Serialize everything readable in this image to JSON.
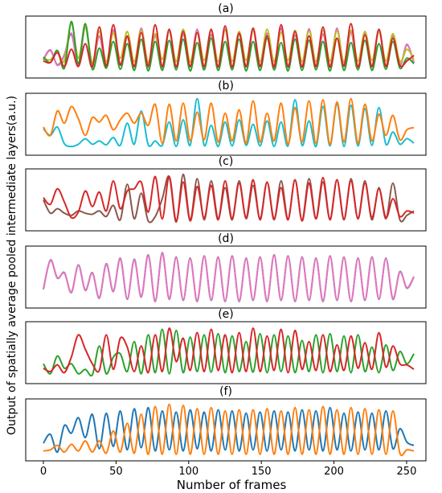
{
  "figure": {
    "ylabel": "Output of spatially average pooled intermediate layers(a.u.)",
    "xlabel": "Number of frames"
  },
  "chart_data": [
    {
      "type": "line",
      "title": "(a)",
      "xlim": [
        0,
        255
      ],
      "ylim": [
        0,
        1
      ],
      "series": [
        {
          "color": "#8c564b",
          "values": [
            0.27,
            0.44,
            0.18,
            0.36,
            0.73,
            0.19,
            0.85,
            0.2,
            0.69,
            0.17,
            0.8,
            0.18,
            0.68,
            0.15,
            0.83,
            0.14,
            0.7,
            0.13,
            0.8,
            0.15,
            0.73,
            0.15,
            0.81,
            0.14,
            0.72,
            0.15,
            0.81,
            0.13,
            0.73,
            0.15,
            0.8,
            0.16,
            0.74,
            0.16,
            0.83,
            0.14,
            0.71,
            0.15,
            0.82,
            0.15,
            0.73,
            0.15,
            0.83,
            0.16,
            0.76,
            0.14,
            0.74,
            0.15,
            0.8,
            0.16,
            0.7,
            0.18,
            0.54,
            0.22
          ]
        },
        {
          "color": "#e377c2",
          "values": [
            0.28,
            0.45,
            0.17,
            0.35,
            0.75,
            0.18,
            0.86,
            0.2,
            0.7,
            0.16,
            0.81,
            0.17,
            0.69,
            0.14,
            0.84,
            0.13,
            0.71,
            0.12,
            0.81,
            0.14,
            0.74,
            0.14,
            0.82,
            0.13,
            0.73,
            0.14,
            0.82,
            0.12,
            0.74,
            0.14,
            0.81,
            0.15,
            0.75,
            0.15,
            0.84,
            0.13,
            0.72,
            0.14,
            0.83,
            0.14,
            0.74,
            0.14,
            0.84,
            0.15,
            0.77,
            0.13,
            0.75,
            0.14,
            0.81,
            0.15,
            0.71,
            0.17,
            0.55,
            0.21
          ]
        },
        {
          "color": "#bcbd22",
          "values": [
            0.3,
            0.27,
            0.4,
            0.25,
            0.93,
            0.3,
            0.86,
            0.22,
            0.78,
            0.24,
            0.75,
            0.3,
            0.78,
            0.24,
            0.8,
            0.22,
            0.74,
            0.28,
            0.78,
            0.24,
            0.82,
            0.23,
            0.76,
            0.26,
            0.79,
            0.24,
            0.8,
            0.24,
            0.78,
            0.26,
            0.8,
            0.24,
            0.82,
            0.24,
            0.76,
            0.26,
            0.8,
            0.24,
            0.79,
            0.24,
            0.8,
            0.25,
            0.79,
            0.24,
            0.8,
            0.25,
            0.78,
            0.26,
            0.77,
            0.25,
            0.74,
            0.24,
            0.46,
            0.28
          ]
        },
        {
          "color": "#2ca02c",
          "values": [
            0.32,
            0.22,
            0.44,
            0.12,
            0.96,
            0.2,
            0.92,
            0.1,
            0.48,
            0.12,
            0.6,
            0.1,
            0.56,
            0.08,
            0.64,
            0.07,
            0.6,
            0.08,
            0.62,
            0.09,
            0.64,
            0.07,
            0.58,
            0.09,
            0.66,
            0.08,
            0.6,
            0.09,
            0.64,
            0.07,
            0.6,
            0.08,
            0.66,
            0.09,
            0.58,
            0.07,
            0.64,
            0.08,
            0.62,
            0.09,
            0.6,
            0.07,
            0.66,
            0.08,
            0.58,
            0.09,
            0.62,
            0.08,
            0.56,
            0.1,
            0.6,
            0.12,
            0.3,
            0.2
          ]
        },
        {
          "color": "#d62728",
          "values": [
            0.25,
            0.22,
            0.4,
            0.15,
            0.46,
            0.15,
            0.56,
            0.14,
            0.86,
            0.16,
            0.9,
            0.18,
            0.7,
            0.15,
            0.76,
            0.16,
            0.9,
            0.15,
            0.82,
            0.14,
            0.78,
            0.15,
            0.76,
            0.15,
            0.82,
            0.14,
            0.88,
            0.14,
            0.75,
            0.15,
            0.84,
            0.15,
            0.7,
            0.14,
            0.9,
            0.15,
            0.78,
            0.14,
            0.7,
            0.15,
            0.86,
            0.14,
            0.66,
            0.16,
            0.92,
            0.14,
            0.72,
            0.15,
            0.82,
            0.15,
            0.66,
            0.17,
            0.25,
            0.35
          ]
        }
      ]
    },
    {
      "type": "line",
      "title": "(b)",
      "xlim": [
        0,
        255
      ],
      "ylim": [
        0,
        1
      ],
      "series": [
        {
          "color": "#17becf",
          "values": [
            0.42,
            0.3,
            0.45,
            0.15,
            0.1,
            0.14,
            0.24,
            0.14,
            0.2,
            0.13,
            0.26,
            0.12,
            0.52,
            0.14,
            0.74,
            0.13,
            0.2,
            0.12,
            0.54,
            0.1,
            0.58,
            0.12,
            0.96,
            0.12,
            0.48,
            0.1,
            0.54,
            0.11,
            0.58,
            0.12,
            0.5,
            0.11,
            0.56,
            0.1,
            0.54,
            0.11,
            0.94,
            0.12,
            0.56,
            0.1,
            0.82,
            0.11,
            0.86,
            0.1,
            0.84,
            0.11,
            0.78,
            0.12,
            0.8,
            0.14,
            0.36,
            0.14,
            0.24,
            0.16
          ]
        },
        {
          "color": "#ff7f0e",
          "values": [
            0.45,
            0.3,
            0.74,
            0.52,
            0.82,
            0.6,
            0.3,
            0.62,
            0.54,
            0.66,
            0.4,
            0.58,
            0.7,
            0.52,
            0.7,
            0.48,
            0.86,
            0.16,
            0.86,
            0.2,
            0.88,
            0.2,
            0.72,
            0.22,
            0.88,
            0.18,
            0.7,
            0.2,
            0.76,
            0.16,
            0.92,
            0.18,
            0.7,
            0.2,
            0.88,
            0.14,
            0.8,
            0.18,
            0.92,
            0.16,
            0.94,
            0.14,
            0.9,
            0.18,
            0.96,
            0.16,
            0.86,
            0.2,
            0.68,
            0.3,
            0.66,
            0.22,
            0.4,
            0.44
          ]
        }
      ]
    },
    {
      "type": "line",
      "title": "(c)",
      "xlim": [
        0,
        255
      ],
      "ylim": [
        0,
        1
      ],
      "series": [
        {
          "color": "#8c564b",
          "values": [
            0.5,
            0.26,
            0.34,
            0.26,
            0.22,
            0.3,
            0.26,
            0.24,
            0.3,
            0.2,
            0.4,
            0.14,
            0.78,
            0.16,
            0.62,
            0.12,
            0.2,
            0.52,
            0.92,
            0.1,
            0.96,
            0.14,
            0.88,
            0.14,
            0.84,
            0.16,
            0.72,
            0.14,
            0.84,
            0.16,
            0.76,
            0.16,
            0.82,
            0.14,
            0.84,
            0.16,
            0.86,
            0.14,
            0.88,
            0.16,
            0.82,
            0.15,
            0.86,
            0.14,
            0.88,
            0.16,
            0.84,
            0.14,
            0.72,
            0.16,
            0.8,
            0.14,
            0.22,
            0.3
          ]
        },
        {
          "color": "#d62728",
          "values": [
            0.54,
            0.42,
            0.7,
            0.46,
            0.18,
            0.28,
            0.66,
            0.38,
            0.64,
            0.3,
            0.84,
            0.34,
            0.66,
            0.7,
            0.82,
            0.28,
            0.92,
            0.16,
            0.92,
            0.12,
            0.82,
            0.12,
            0.74,
            0.18,
            0.76,
            0.14,
            0.84,
            0.16,
            0.8,
            0.18,
            0.86,
            0.14,
            0.82,
            0.16,
            0.72,
            0.14,
            0.86,
            0.12,
            0.8,
            0.16,
            0.9,
            0.14,
            0.86,
            0.16,
            0.84,
            0.16,
            0.8,
            0.18,
            0.7,
            0.18,
            0.52,
            0.2,
            0.3,
            0.26
          ]
        }
      ]
    },
    {
      "type": "line",
      "title": "(d)",
      "xlim": [
        0,
        255
      ],
      "ylim": [
        0,
        1
      ],
      "series": [
        {
          "color": "#7f7f7f",
          "values": [
            0.28,
            0.8,
            0.48,
            0.58,
            0.22,
            0.72,
            0.26,
            0.58,
            0.12,
            0.74,
            0.24,
            0.84,
            0.1,
            0.82,
            0.14,
            0.9,
            0.06,
            0.94,
            0.1,
            0.86,
            0.08,
            0.84,
            0.06,
            0.88,
            0.08,
            0.86,
            0.06,
            0.88,
            0.06,
            0.84,
            0.08,
            0.86,
            0.06,
            0.9,
            0.08,
            0.88,
            0.06,
            0.86,
            0.08,
            0.84,
            0.06,
            0.88,
            0.08,
            0.86,
            0.06,
            0.84,
            0.08,
            0.86,
            0.1,
            0.84,
            0.1,
            0.6,
            0.3,
            0.5
          ]
        },
        {
          "color": "#e377c2",
          "values": [
            0.29,
            0.81,
            0.49,
            0.57,
            0.23,
            0.71,
            0.27,
            0.57,
            0.13,
            0.73,
            0.25,
            0.83,
            0.11,
            0.81,
            0.15,
            0.89,
            0.07,
            0.93,
            0.11,
            0.85,
            0.09,
            0.83,
            0.07,
            0.87,
            0.09,
            0.85,
            0.07,
            0.87,
            0.07,
            0.83,
            0.09,
            0.85,
            0.07,
            0.89,
            0.09,
            0.87,
            0.07,
            0.85,
            0.09,
            0.83,
            0.07,
            0.87,
            0.09,
            0.85,
            0.07,
            0.83,
            0.09,
            0.85,
            0.11,
            0.83,
            0.11,
            0.59,
            0.31,
            0.51
          ]
        }
      ]
    },
    {
      "type": "line",
      "title": "(e)",
      "xlim": [
        0,
        255
      ],
      "ylim": [
        0,
        1
      ],
      "series": [
        {
          "color": "#2ca02c",
          "values": [
            0.3,
            0.12,
            0.44,
            0.22,
            0.3,
            0.12,
            0.2,
            0.1,
            0.62,
            0.12,
            0.42,
            0.48,
            0.16,
            0.7,
            0.12,
            0.82,
            0.14,
            0.92,
            0.12,
            0.9,
            0.14,
            0.78,
            0.16,
            0.82,
            0.15,
            0.84,
            0.14,
            0.8,
            0.16,
            0.7,
            0.15,
            0.84,
            0.14,
            0.82,
            0.16,
            0.8,
            0.14,
            0.72,
            0.16,
            0.82,
            0.14,
            0.84,
            0.16,
            0.8,
            0.14,
            0.82,
            0.16,
            0.6,
            0.14,
            0.64,
            0.18,
            0.52,
            0.3,
            0.48
          ]
        },
        {
          "color": "#d62728",
          "values": [
            0.22,
            0.16,
            0.28,
            0.14,
            0.42,
            0.82,
            0.56,
            0.3,
            0.18,
            0.82,
            0.2,
            0.76,
            0.6,
            0.16,
            0.62,
            0.14,
            0.82,
            0.16,
            0.94,
            0.34,
            0.76,
            0.18,
            0.86,
            0.16,
            0.92,
            0.18,
            0.82,
            0.14,
            0.86,
            0.16,
            0.94,
            0.16,
            0.8,
            0.18,
            0.92,
            0.14,
            0.9,
            0.2,
            0.7,
            0.18,
            0.82,
            0.16,
            0.64,
            0.18,
            0.8,
            0.22,
            0.68,
            0.2,
            0.86,
            0.24,
            0.62,
            0.3,
            0.28,
            0.2
          ]
        }
      ]
    },
    {
      "type": "line",
      "title": "(f)",
      "xlim": [
        0,
        255
      ],
      "ylim": [
        0,
        1
      ],
      "series": [
        {
          "color": "#1f77b4",
          "values": [
            0.26,
            0.42,
            0.1,
            0.58,
            0.44,
            0.72,
            0.36,
            0.78,
            0.16,
            0.8,
            0.2,
            0.84,
            0.14,
            0.88,
            0.18,
            0.9,
            0.12,
            0.84,
            0.14,
            0.82,
            0.12,
            0.86,
            0.16,
            0.82,
            0.12,
            0.86,
            0.14,
            0.84,
            0.12,
            0.8,
            0.14,
            0.82,
            0.12,
            0.84,
            0.14,
            0.82,
            0.12,
            0.86,
            0.14,
            0.84,
            0.12,
            0.9,
            0.14,
            0.8,
            0.12,
            0.82,
            0.14,
            0.8,
            0.14,
            0.84,
            0.16,
            0.52,
            0.28,
            0.22
          ]
        },
        {
          "color": "#ff7f0e",
          "values": [
            0.12,
            0.14,
            0.22,
            0.1,
            0.24,
            0.12,
            0.3,
            0.1,
            0.3,
            0.08,
            0.48,
            0.1,
            0.62,
            0.08,
            0.78,
            0.06,
            0.92,
            0.06,
            0.96,
            0.06,
            0.94,
            0.06,
            0.88,
            0.06,
            0.9,
            0.06,
            0.84,
            0.06,
            0.86,
            0.06,
            0.86,
            0.06,
            0.88,
            0.06,
            0.84,
            0.06,
            0.9,
            0.06,
            0.86,
            0.06,
            0.92,
            0.06,
            0.86,
            0.06,
            0.9,
            0.06,
            0.88,
            0.06,
            0.86,
            0.06,
            0.84,
            0.08,
            0.14,
            0.12
          ]
        }
      ]
    }
  ],
  "x_axis": {
    "ticks": [
      0,
      50,
      100,
      150,
      200,
      250
    ],
    "tick_labels": [
      "0",
      "50",
      "100",
      "150",
      "200",
      "250"
    ]
  }
}
